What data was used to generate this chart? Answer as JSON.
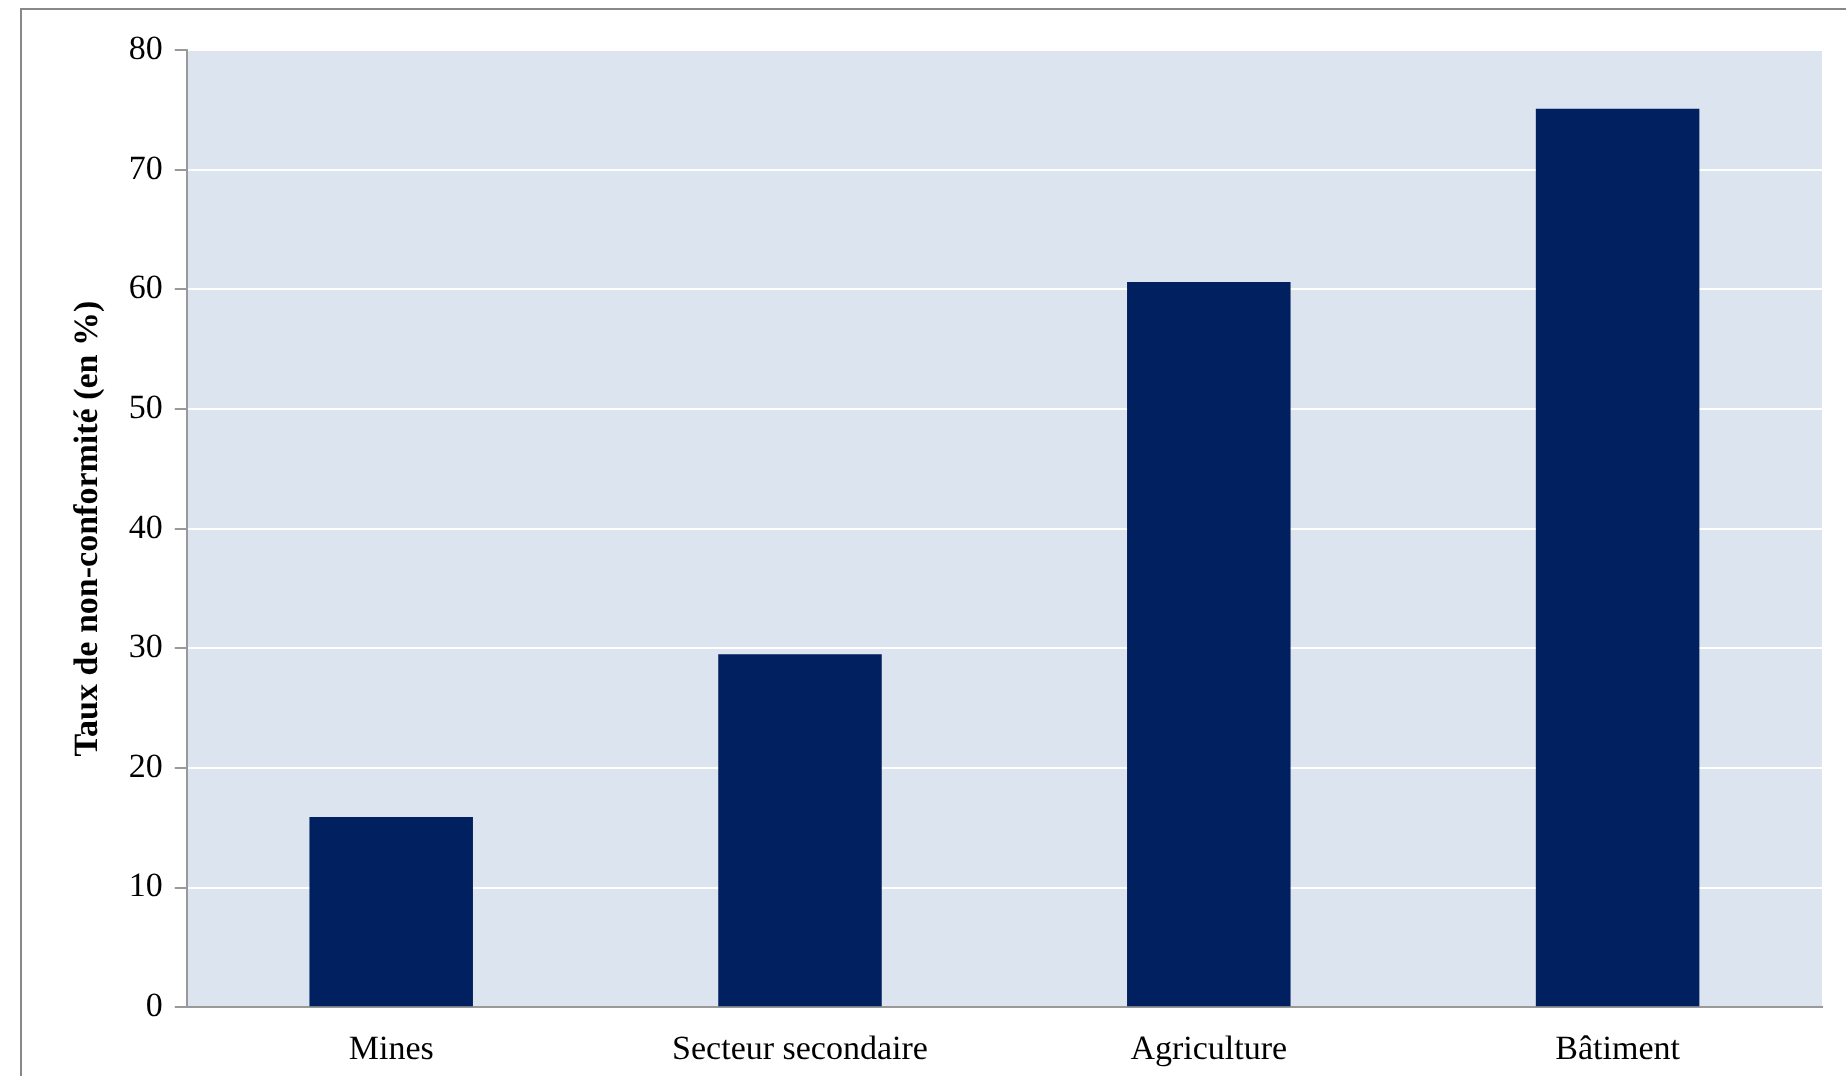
{
  "chart_data": {
    "type": "bar",
    "ylabel": "Taux de non-conformité (en %)",
    "categories": [
      "Mines",
      "Secteur secondaire",
      "Agriculture",
      "Bâtiment"
    ],
    "values": [
      15.9,
      29.5,
      60.6,
      75.1
    ],
    "color": "#002060",
    "ylim": [
      0,
      80
    ],
    "yticks": [
      0,
      10,
      20,
      30,
      40,
      50,
      60,
      70,
      80
    ],
    "grid": "y",
    "legend": false
  }
}
